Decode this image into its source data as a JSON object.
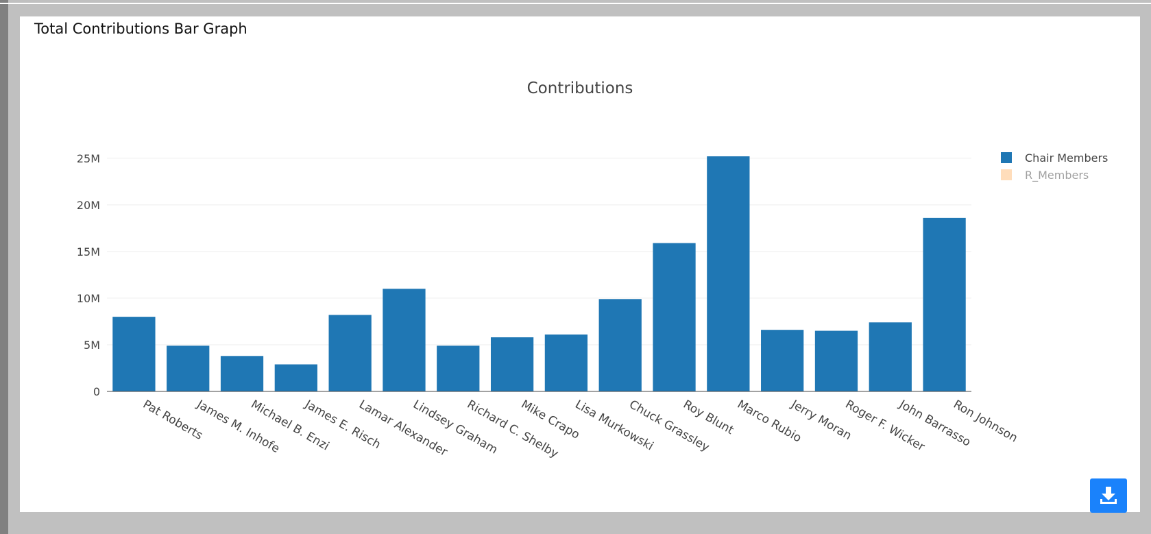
{
  "header": {
    "title": "Total Contributions Bar Graph"
  },
  "chart_data": {
    "type": "bar",
    "title": "Contributions",
    "categories": [
      "Pat Roberts",
      "James M. Inhofe",
      "Michael B. Enzi",
      "James E. Risch",
      "Lamar Alexander",
      "Lindsey Graham",
      "Richard C. Shelby",
      "Mike Crapo",
      "Lisa Murkowski",
      "Chuck Grassley",
      "Roy Blunt",
      "Marco Rubio",
      "Jerry Moran",
      "Roger F. Wicker",
      "John Barrasso",
      "Ron Johnson"
    ],
    "series": [
      {
        "name": "Chair Members",
        "color": "#1f77b4",
        "values": [
          8000000,
          4900000,
          3800000,
          2900000,
          8200000,
          11000000,
          4900000,
          5800000,
          6100000,
          9900000,
          15900000,
          25200000,
          6600000,
          6500000,
          7400000,
          18600000
        ]
      },
      {
        "name": "R_Members",
        "color": "#ffbb78",
        "visible": false
      }
    ],
    "ylim": [
      0,
      26600000
    ],
    "yticks": [
      0,
      {
        "value": 5000000,
        "label": "5M"
      },
      {
        "value": 10000000,
        "label": "10M"
      },
      {
        "value": 15000000,
        "label": "15M"
      },
      {
        "value": 20000000,
        "label": "20M"
      },
      {
        "value": 25000000,
        "label": "25M"
      }
    ],
    "grid": true,
    "legend": "right"
  }
}
